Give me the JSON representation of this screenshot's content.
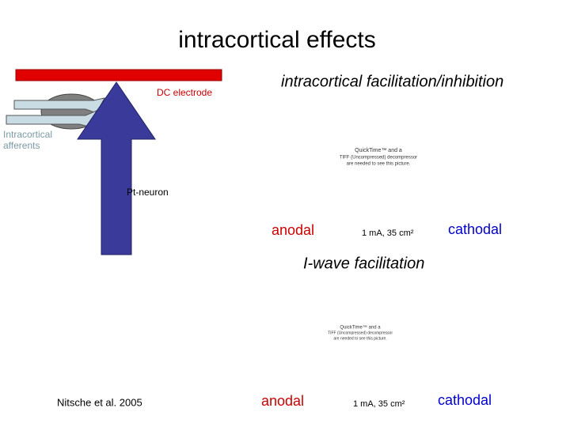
{
  "slide": {
    "title": "intracortical effects",
    "electrode_label": "DC electrode",
    "afferents_label": [
      "Intracortical",
      "afferents"
    ],
    "neuron_label": "Pt-neuron",
    "citation": "Nitsche et al. 2005",
    "panels": [
      {
        "heading": "intracortical facilitation/inhibition",
        "placeholder": [
          "QuickTime™ and a",
          "TIFF (Uncompressed) decompressor",
          "are needed to see this picture."
        ],
        "left": "anodal",
        "middle": "1 mA, 35 cm²",
        "right": "cathodal"
      },
      {
        "heading": "I-wave facilitation",
        "placeholder": [
          "QuickTime™ and a",
          "TIFF (Uncompressed) decompressor",
          "are needed to see this picture."
        ],
        "left": "anodal",
        "middle": "1 mA, 35 cm²",
        "right": "cathodal"
      }
    ]
  }
}
